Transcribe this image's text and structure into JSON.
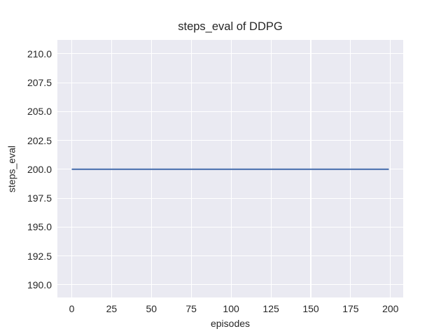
{
  "figure": {
    "background": "#ffffff"
  },
  "chart_data": {
    "type": "line",
    "title": "steps_eval of DDPG",
    "xlabel": "episodes",
    "ylabel": "steps_eval",
    "xlim": [
      -9,
      208
    ],
    "ylim": [
      188.9,
      211.2
    ],
    "xticks": [
      0,
      25,
      50,
      75,
      100,
      125,
      150,
      175,
      200
    ],
    "xtick_labels": [
      "0",
      "25",
      "50",
      "75",
      "100",
      "125",
      "150",
      "175",
      "200"
    ],
    "yticks": [
      190.0,
      192.5,
      195.0,
      197.5,
      200.0,
      202.5,
      205.0,
      207.5,
      210.0
    ],
    "ytick_labels": [
      "190.0",
      "192.5",
      "195.0",
      "197.5",
      "200.0",
      "202.5",
      "205.0",
      "207.5",
      "210.0"
    ],
    "grid": true,
    "legend": false,
    "series": [
      {
        "name": "DDPG",
        "color": "#4c72b0",
        "line_width": 2.2,
        "points": [
          [
            0,
            200
          ],
          [
            199,
            200
          ]
        ]
      }
    ],
    "style": {
      "plot_background": "#eaeaf2",
      "grid_color": "#ffffff",
      "text_color": "#262626",
      "figure_background": "#ffffff"
    }
  }
}
